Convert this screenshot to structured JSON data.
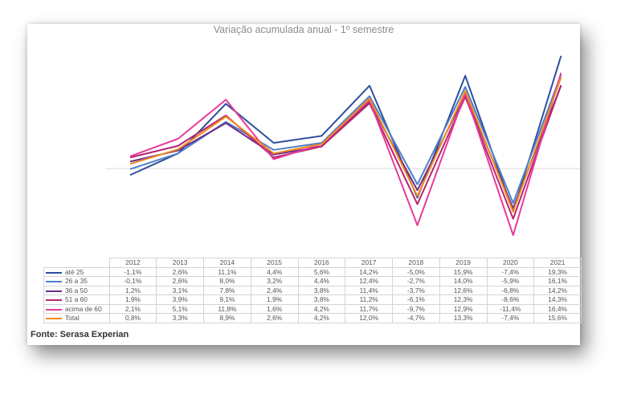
{
  "chart_data": {
    "type": "line",
    "title": "Variação acumulada anual - 1º semestre",
    "categories": [
      "2012",
      "2013",
      "2014",
      "2015",
      "2016",
      "2017",
      "2018",
      "2019",
      "2020",
      "2021"
    ],
    "ylim": [
      -14,
      22
    ],
    "series": [
      {
        "name": "até 25",
        "color": "#2e4f9c",
        "values": [
          -1.1,
          2.6,
          11.1,
          4.4,
          5.6,
          14.2,
          -5.0,
          15.9,
          -7.4,
          19.3
        ],
        "labels": [
          "-1,1%",
          "2,6%",
          "11,1%",
          "4,4%",
          "5,6%",
          "14,2%",
          "-5,0%",
          "15,9%",
          "-7,4%",
          "19,3%"
        ]
      },
      {
        "name": "26 a 35",
        "color": "#4f7fc4",
        "values": [
          -0.1,
          2.6,
          8.0,
          3.2,
          4.4,
          12.4,
          -2.7,
          14.0,
          -5.9,
          16.1
        ],
        "labels": [
          "-0,1%",
          "2,6%",
          "8,0%",
          "3,2%",
          "4,4%",
          "12,4%",
          "-2,7%",
          "14,0%",
          "-5,9%",
          "16,1%"
        ]
      },
      {
        "name": "36 a 50",
        "color": "#6b2d8e",
        "values": [
          1.2,
          3.1,
          7.8,
          2.4,
          3.8,
          11.4,
          -3.7,
          12.6,
          -6.8,
          14.2
        ],
        "labels": [
          "1,2%",
          "3,1%",
          "7,8%",
          "2,4%",
          "3,8%",
          "11,4%",
          "-3,7%",
          "12,6%",
          "-6,8%",
          "14,2%"
        ]
      },
      {
        "name": "51 a 60",
        "color": "#b5246f",
        "values": [
          1.9,
          3.9,
          9.1,
          1.9,
          3.8,
          11.2,
          -6.1,
          12.3,
          -8.6,
          14.3
        ],
        "labels": [
          "1,9%",
          "3,9%",
          "9,1%",
          "1,9%",
          "3,8%",
          "11,2%",
          "-6,1%",
          "12,3%",
          "-8,6%",
          "14,3%"
        ]
      },
      {
        "name": "acima de 60",
        "color": "#e8399a",
        "values": [
          2.1,
          5.1,
          11.8,
          1.6,
          4.2,
          11.7,
          -9.7,
          12.9,
          -11.4,
          16.4
        ],
        "labels": [
          "2,1%",
          "5,1%",
          "11,8%",
          "1,6%",
          "4,2%",
          "11,7%",
          "-9,7%",
          "12,9%",
          "-11,4%",
          "16,4%"
        ]
      },
      {
        "name": "Total",
        "color": "#f28a1c",
        "values": [
          0.8,
          3.3,
          8.9,
          2.6,
          4.2,
          12.0,
          -4.7,
          13.3,
          -7.4,
          15.6
        ],
        "labels": [
          "0,8%",
          "3,3%",
          "8,9%",
          "2,6%",
          "4,2%",
          "12,0%",
          "-4,7%",
          "13,3%",
          "-7,4%",
          "15,6%"
        ]
      }
    ],
    "legend": "data-table-left",
    "grid": false
  },
  "source_text": "Fonte: Serasa Experian"
}
